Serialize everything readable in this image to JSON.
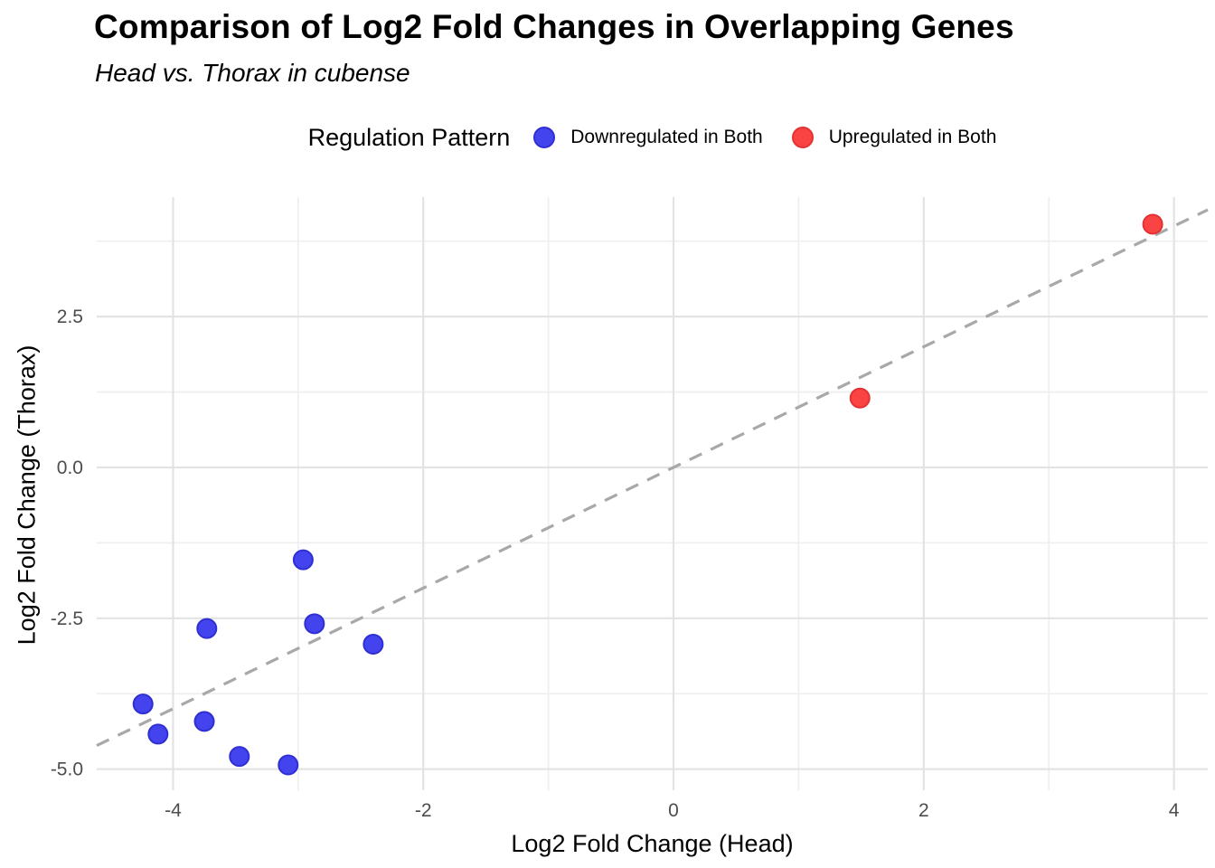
{
  "chart_data": {
    "type": "scatter",
    "title": "Comparison of Log2 Fold Changes in Overlapping Genes",
    "subtitle": "Head vs. Thorax in cubense",
    "xlabel": "Log2 Fold Change (Head)",
    "ylabel": "Log2 Fold Change (Thorax)",
    "xlim": [
      -4.61,
      4.27
    ],
    "ylim": [
      -5.35,
      4.48
    ],
    "grid": true,
    "x_ticks": [
      {
        "value": -4,
        "label": "-4"
      },
      {
        "value": -2,
        "label": "-2"
      },
      {
        "value": 0,
        "label": "0"
      },
      {
        "value": 2,
        "label": "2"
      },
      {
        "value": 4,
        "label": "4"
      }
    ],
    "y_ticks": [
      {
        "value": 2.5,
        "label": "2.5"
      },
      {
        "value": 0,
        "label": "0.0"
      },
      {
        "value": -2.5,
        "label": "-2.5"
      },
      {
        "value": -5,
        "label": "-5.0"
      }
    ],
    "x_minor_breaks": [
      -3,
      -1,
      1,
      3
    ],
    "y_minor_breaks": [
      3.75,
      1.25,
      -1.25,
      -3.75
    ],
    "legend": {
      "title": "Regulation Pattern",
      "position": "top",
      "items": [
        {
          "label": "Downregulated in Both",
          "color": "#4444ee",
          "stroke": "#2f2fd3"
        },
        {
          "label": "Upregulated in Both",
          "color": "#fa4343",
          "stroke": "#e23232"
        }
      ]
    },
    "reference_line": {
      "type": "identity",
      "style": "dashed",
      "color": "#a8a8a8",
      "x1": -4.61,
      "y1": -4.61,
      "x2": 4.27,
      "y2": 4.27
    },
    "series": [
      {
        "name": "Downregulated in Both",
        "color": "#4444ee",
        "stroke": "#2f2fd3",
        "points": [
          [
            -2.96,
            -1.53
          ],
          [
            -2.87,
            -2.59
          ],
          [
            -3.73,
            -2.67
          ],
          [
            -2.4,
            -2.93
          ],
          [
            -4.24,
            -3.92
          ],
          [
            -3.75,
            -4.21
          ],
          [
            -4.12,
            -4.42
          ],
          [
            -3.47,
            -4.79
          ],
          [
            -3.08,
            -4.93
          ]
        ]
      },
      {
        "name": "Upregulated in Both",
        "color": "#fa4343",
        "stroke": "#e23232",
        "points": [
          [
            1.49,
            1.15
          ],
          [
            3.83,
            4.03
          ]
        ]
      }
    ]
  }
}
